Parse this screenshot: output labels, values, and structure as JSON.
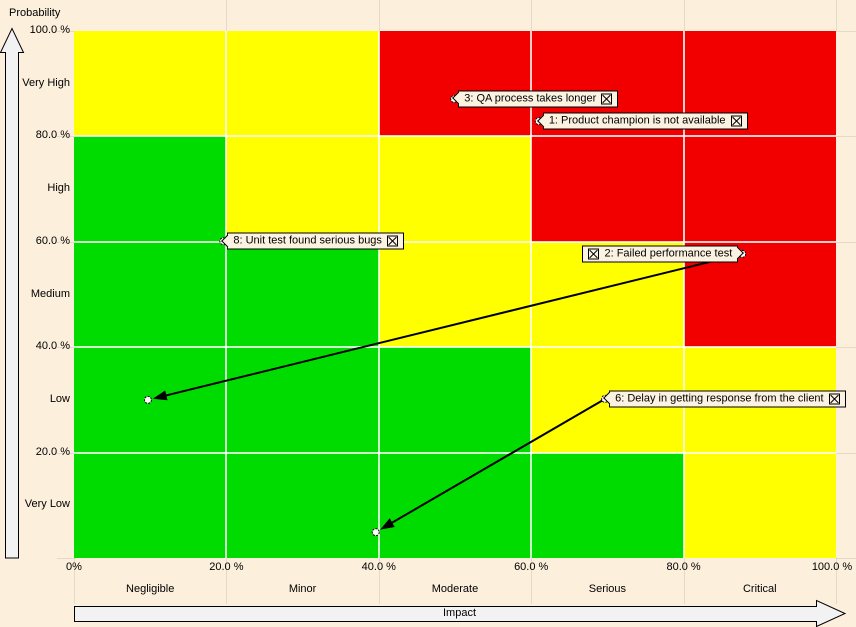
{
  "chart_data": {
    "type": "heatmap",
    "subtype": "risk-matrix",
    "x_axis": {
      "title": "Impact",
      "tick_labels": [
        "0%",
        "20.0 %",
        "40.0 %",
        "60.0 %",
        "80.0 %",
        "100.0 %"
      ],
      "tick_values_pct": [
        0,
        20,
        40,
        60,
        80,
        100
      ],
      "categories": [
        "Negligible",
        "Minor",
        "Moderate",
        "Serious",
        "Critical"
      ]
    },
    "y_axis": {
      "title": "Probability",
      "tick_labels": [
        "100.0 %",
        "80.0 %",
        "60.0 %",
        "40.0 %",
        "20.0 %"
      ],
      "tick_values_pct": [
        100,
        80,
        60,
        40,
        20
      ],
      "categories": [
        "Very High",
        "High",
        "Medium",
        "Low",
        "Very Low"
      ]
    },
    "cell_colors": {
      "green": "#00dc00",
      "yellow": "#ffff00",
      "red": "#f20000"
    },
    "matrix_rows_top_to_bottom": [
      [
        "yellow",
        "yellow",
        "red",
        "red",
        "red"
      ],
      [
        "green",
        "yellow",
        "yellow",
        "red",
        "red"
      ],
      [
        "green",
        "green",
        "yellow",
        "yellow",
        "red"
      ],
      [
        "green",
        "green",
        "green",
        "yellow",
        "yellow"
      ],
      [
        "green",
        "green",
        "green",
        "green",
        "yellow"
      ]
    ],
    "risks": [
      {
        "label": "3: QA process takes longer",
        "impact_pct": 49.9,
        "probability_pct": 87.1,
        "marker_side": "left"
      },
      {
        "label": "1: Product champion is not available",
        "impact_pct": 61.0,
        "probability_pct": 82.9,
        "marker_side": "left"
      },
      {
        "label": "8: Unit test found serious bugs",
        "impact_pct": 19.6,
        "probability_pct": 60.1,
        "marker_side": "left"
      },
      {
        "label": "2: Failed performance test",
        "impact_pct": 87.7,
        "probability_pct": 57.7,
        "marker_side": "right",
        "moved_to": {
          "impact_pct": 9.7,
          "probability_pct": 30.0
        }
      },
      {
        "label": "6: Delay in getting response from the client",
        "impact_pct": 69.7,
        "probability_pct": 30.2,
        "marker_side": "left",
        "moved_to": {
          "impact_pct": 39.6,
          "probability_pct": 4.9
        }
      }
    ],
    "colors": {
      "background": "#fcefdc",
      "label_box_background": "#fcf2e2",
      "axis_arrow_fill": "#f2f2f2",
      "movement_arrow": "#000000"
    }
  }
}
